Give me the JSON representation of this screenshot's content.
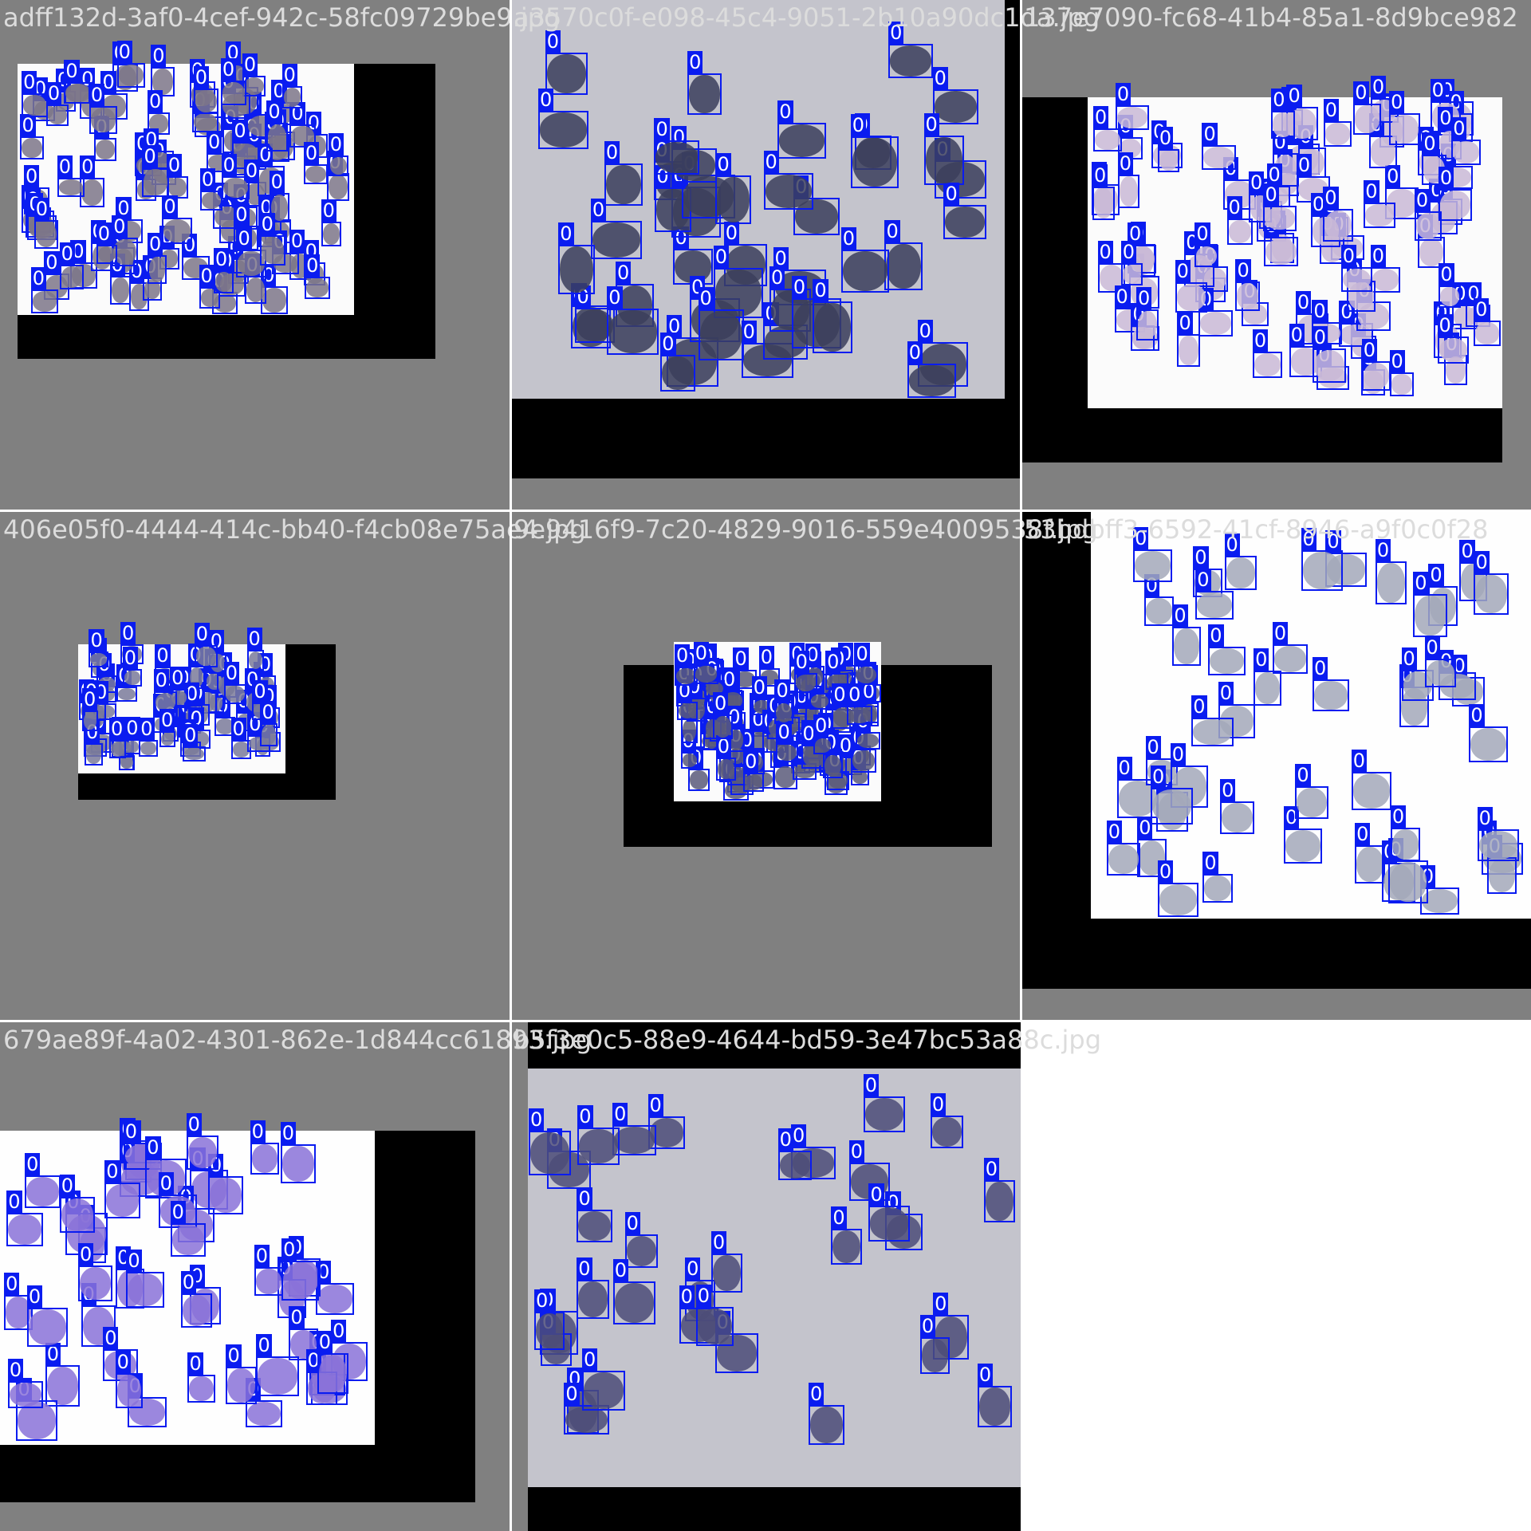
{
  "mosaic": {
    "tiles": [
      {
        "file": "adff132d-3af0-4cef-942c-58fc09729be9.jpg",
        "style": "white",
        "cell": "#7d7688",
        "count": 95
      },
      {
        "file": "a3570c0f-e098-45c4-9051-2b10a90dc1da.jpg",
        "style": "grey",
        "cell": "#3b3e5c",
        "count": 44
      },
      {
        "file": "137e7090-fc68-41b4-85a1-8d9bce982",
        "style": "white",
        "cell": "#c9b8d6",
        "count": 92
      },
      {
        "file": "406e05f0-4444-414c-bb40-f4cb08e75ae4.jpg",
        "style": "white",
        "cell": "#7a7a9a",
        "count": 60
      },
      {
        "file": "9e9416f9-7c20-4829-9016-559e4009538f.jpg",
        "style": "white",
        "cell": "#5a5a7a",
        "count": 90
      },
      {
        "file": "53bdbff3-6592-41cf-8946-a9f0c0f28",
        "style": "vwhite",
        "cell": "#a3a8ba",
        "count": 46
      },
      {
        "file": "679ae89f-4a02-4301-862e-1d844cc61893.jpg",
        "style": "vwhite",
        "cell": "#8a72d8",
        "count": 48
      },
      {
        "file": "b5f3e0c5-88e9-4644-bd59-3e47bc53a88c.jpg",
        "style": "grey",
        "cell": "#4c4c78",
        "count": 33
      }
    ],
    "class_label": "0"
  }
}
